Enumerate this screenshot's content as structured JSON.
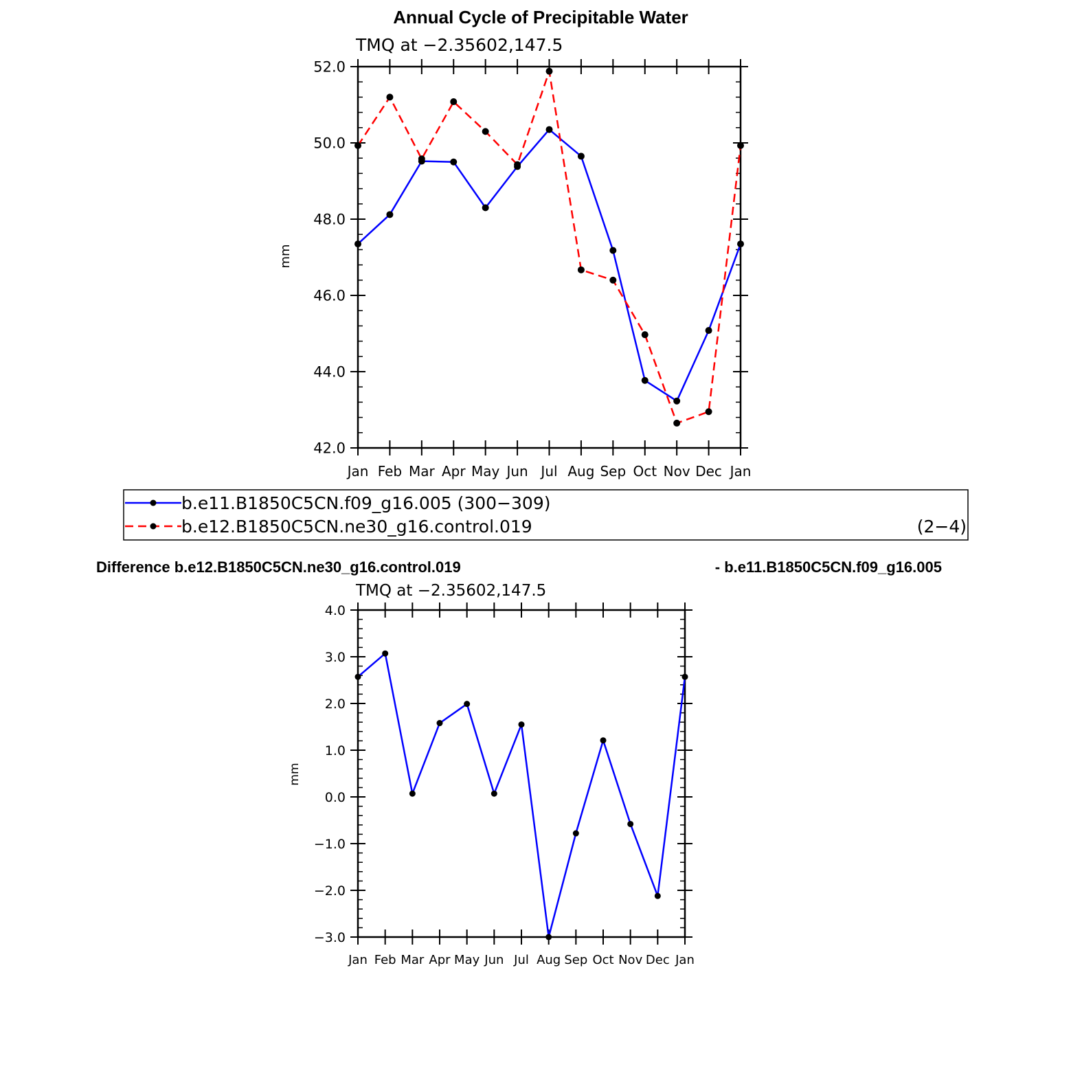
{
  "title": "Annual Cycle of Precipitable Water",
  "colors": {
    "case1": "#0000ff",
    "case2": "#ff0000",
    "marker": "#000000"
  },
  "legend": {
    "entries": [
      {
        "label": "b.e11.B1850C5CN.f09_g16.005 (300−309)",
        "color": "#0000ff",
        "style": "solid"
      },
      {
        "label": "b.e12.B1850C5CN.ne30_g16.control.019",
        "color": "#ff0000",
        "style": "dashed"
      }
    ],
    "range": "(2−4)"
  },
  "diff": {
    "title_left": "Difference b.e12.B1850C5CN.ne30_g16.control.019",
    "title_right": "- b.e11.B1850C5CN.f09_g16.005"
  },
  "chart_data": [
    {
      "type": "line",
      "subtitle": "TMQ at −2.35602,147.5",
      "ylabel": "mm",
      "categories": [
        "Jan",
        "Feb",
        "Mar",
        "Apr",
        "May",
        "Jun",
        "Jul",
        "Aug",
        "Sep",
        "Oct",
        "Nov",
        "Dec",
        "Jan"
      ],
      "ylim": [
        42.0,
        52.0
      ],
      "yticks": [
        "42.0",
        "44.0",
        "46.0",
        "48.0",
        "50.0",
        "52.0"
      ],
      "series": [
        {
          "name": "b.e11.B1850C5CN.f09_g16.005 (300−309)",
          "color": "#0000ff",
          "dashed": false,
          "values": [
            47.35,
            48.12,
            49.52,
            49.5,
            48.3,
            49.38,
            50.35,
            49.65,
            47.18,
            43.77,
            43.23,
            45.08,
            47.35
          ]
        },
        {
          "name": "b.e12.B1850C5CN.ne30_g16.control.019",
          "color": "#ff0000",
          "dashed": true,
          "values": [
            49.93,
            51.2,
            49.58,
            51.08,
            50.3,
            49.43,
            51.88,
            46.67,
            46.4,
            44.97,
            42.65,
            42.95,
            49.93
          ]
        }
      ]
    },
    {
      "type": "line",
      "subtitle": "TMQ at −2.35602,147.5",
      "ylabel": "mm",
      "categories": [
        "Jan",
        "Feb",
        "Mar",
        "Apr",
        "May",
        "Jun",
        "Jul",
        "Aug",
        "Sep",
        "Oct",
        "Nov",
        "Dec",
        "Jan"
      ],
      "ylim": [
        -3.0,
        4.0
      ],
      "yticks": [
        "−3.0",
        "−2.0",
        "−1.0",
        "0.0",
        "1.0",
        "2.0",
        "3.0",
        "4.0"
      ],
      "series": [
        {
          "color": "#0000ff",
          "dashed": false,
          "values": [
            2.57,
            3.07,
            0.07,
            1.58,
            1.99,
            0.07,
            1.55,
            -3.0,
            -0.78,
            1.21,
            -0.58,
            -2.12,
            2.57
          ]
        }
      ]
    }
  ]
}
